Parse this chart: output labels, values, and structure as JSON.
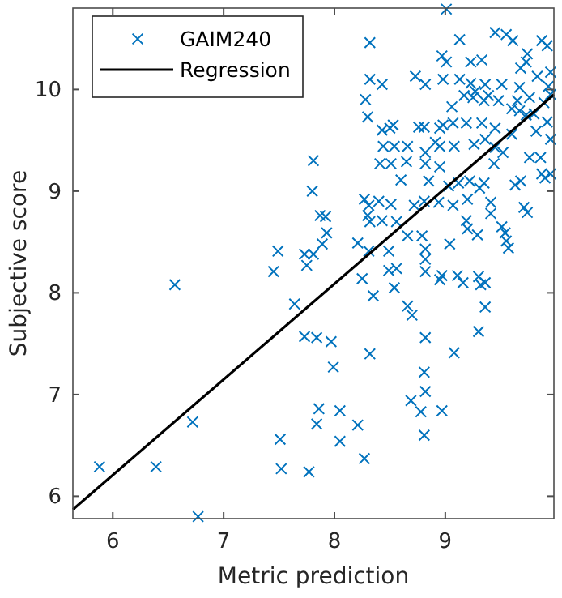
{
  "chart_data": {
    "type": "scatter",
    "xlabel": "Metric prediction",
    "ylabel": "Subjective score",
    "xlim": [
      5.64,
      9.98
    ],
    "ylim": [
      5.78,
      10.8
    ],
    "xticks": [
      6,
      7,
      8,
      9
    ],
    "yticks": [
      6,
      7,
      8,
      9,
      10
    ],
    "grid": false,
    "legend": "top left",
    "series": [
      {
        "name": "GAIM240",
        "marker": "cross",
        "color": "#0072bd",
        "x": [
          5.88,
          6.39,
          6.56,
          6.72,
          6.77,
          7.45,
          7.51,
          7.52,
          7.64,
          7.73,
          7.75,
          7.77,
          7.84,
          7.86,
          7.84,
          7.97,
          7.99,
          8.32,
          8.05,
          8.05,
          8.21,
          8.27,
          8.82,
          8.81,
          8.82,
          8.69,
          8.78,
          8.81,
          8.97,
          9.08,
          9.3,
          9.36,
          9.32,
          9.36,
          9.3,
          9.16,
          8.97,
          8.95,
          9.11,
          8.82,
          8.56,
          8.49,
          8.54,
          8.35,
          8.25,
          8.66,
          8.7,
          9.01,
          8.32,
          9.13,
          9.45,
          9.55,
          9.61,
          9.87,
          9.92,
          9.74,
          8.97,
          9.01,
          9.23,
          9.33,
          9.68,
          9.73,
          8.32,
          8.43,
          8.73,
          8.82,
          8.98,
          9.13,
          9.23,
          9.36,
          9.51,
          9.67,
          9.83,
          9.95,
          9.93,
          9.27,
          9.39,
          9.25,
          9.17,
          9.35,
          9.48,
          9.65,
          9.89,
          9.76,
          9.95,
          8.28,
          8.3,
          9.06,
          9.6,
          9.67,
          9.73,
          9.8,
          9.92,
          8.43,
          8.5,
          8.53,
          8.76,
          8.81,
          8.95,
          8.98,
          9.07,
          9.19,
          9.33,
          9.45,
          9.36,
          9.6,
          9.82,
          9.95,
          8.44,
          8.54,
          8.66,
          8.82,
          8.91,
          8.95,
          9.08,
          9.26,
          9.45,
          9.52,
          9.76,
          9.86,
          7.81,
          8.41,
          8.51,
          8.65,
          8.82,
          8.95,
          9.44,
          9.87,
          9.95,
          8.6,
          8.85,
          9.35,
          9.22,
          9.31,
          9.12,
          9.63,
          9.68,
          9.9,
          9.03,
          7.8,
          8.27,
          8.4,
          8.31,
          8.51,
          8.72,
          8.81,
          8.94,
          9.07,
          9.2,
          9.41,
          9.41,
          9.71,
          9.74,
          8.3,
          7.92,
          8.43,
          8.56,
          8.32,
          8.66,
          8.79,
          9.19,
          9.2,
          9.29,
          9.51,
          9.54,
          9.55,
          9.57,
          8.21,
          7.93,
          7.89,
          7.81,
          8.31,
          8.49,
          8.82,
          9.04,
          8.82,
          7.87,
          7.49,
          7.73
        ],
        "values": [
          6.29,
          6.29,
          8.08,
          6.73,
          5.8,
          8.21,
          6.56,
          6.27,
          7.89,
          7.57,
          8.27,
          6.24,
          7.56,
          6.86,
          6.71,
          7.52,
          7.27,
          7.4,
          6.84,
          6.54,
          6.7,
          6.37,
          7.56,
          7.22,
          7.03,
          6.94,
          6.83,
          6.6,
          6.84,
          7.41,
          7.62,
          7.86,
          8.08,
          8.1,
          8.16,
          8.1,
          8.17,
          8.13,
          8.17,
          8.21,
          8.24,
          8.22,
          8.05,
          7.97,
          8.14,
          7.87,
          7.78,
          10.79,
          10.46,
          10.49,
          10.56,
          10.54,
          10.48,
          10.48,
          10.43,
          10.35,
          10.33,
          10.27,
          10.27,
          10.29,
          10.21,
          10.27,
          10.1,
          10.05,
          10.13,
          10.05,
          10.1,
          10.1,
          10.06,
          10.05,
          10.05,
          10.02,
          10.13,
          10.17,
          10.03,
          9.98,
          9.94,
          9.92,
          9.94,
          9.89,
          9.89,
          9.89,
          9.87,
          9.92,
          9.95,
          9.9,
          9.73,
          9.83,
          9.81,
          9.79,
          9.75,
          9.76,
          9.68,
          9.6,
          9.62,
          9.65,
          9.63,
          9.63,
          9.62,
          9.65,
          9.67,
          9.67,
          9.67,
          9.62,
          9.51,
          9.56,
          9.59,
          9.51,
          9.44,
          9.44,
          9.44,
          9.38,
          9.48,
          9.44,
          9.44,
          9.46,
          9.43,
          9.38,
          9.33,
          9.33,
          9.3,
          9.27,
          9.27,
          9.29,
          9.27,
          9.24,
          9.27,
          9.17,
          9.17,
          9.11,
          9.1,
          9.08,
          9.1,
          9.03,
          9.08,
          9.06,
          9.1,
          9.13,
          9.05,
          9,
          8.92,
          8.9,
          8.86,
          8.87,
          8.86,
          8.9,
          8.89,
          8.86,
          8.92,
          8.89,
          8.78,
          8.84,
          8.79,
          8.76,
          8.75,
          8.71,
          8.7,
          8.7,
          8.56,
          8.56,
          8.71,
          8.63,
          8.57,
          8.65,
          8.59,
          8.51,
          8.44,
          8.49,
          8.59,
          8.48,
          8.38,
          8.41,
          8.41,
          8.43,
          8.48,
          8.33,
          8.76,
          8.41,
          8.38
        ]
      },
      {
        "name": "Regression",
        "type": "line",
        "marker": "none",
        "line_style": "solid",
        "color": "#000000",
        "x": [
          5.64,
          9.98
        ],
        "values": [
          5.87,
          9.95
        ]
      }
    ]
  }
}
